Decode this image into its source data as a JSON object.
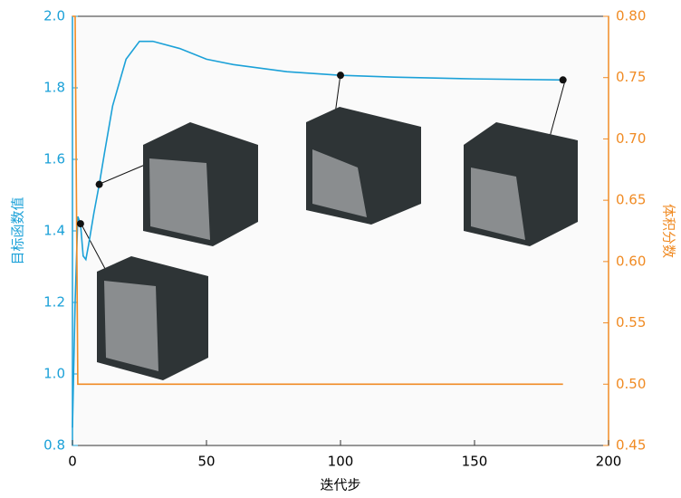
{
  "chart_data": {
    "type": "line",
    "x_label": "迭代步",
    "y_label": "目标函数值",
    "y2_label": "体积分数",
    "xlim": [
      0,
      200
    ],
    "xticks": [
      0,
      50,
      100,
      150,
      200
    ],
    "ylim": [
      0.8,
      2.0
    ],
    "yticks": [
      0.8,
      {
        "value": 1.0,
        "label": "1.0"
      },
      1.2,
      1.4,
      1.6,
      1.8,
      {
        "value": 2.0,
        "label": "2.0"
      }
    ],
    "y2lim": [
      0.45,
      0.8
    ],
    "y2ticks": [
      0.45,
      {
        "value": 0.5,
        "label": "0.50"
      },
      0.55,
      {
        "value": 0.6,
        "label": "0.60"
      },
      0.65,
      {
        "value": 0.7,
        "label": "0.70"
      },
      0.75,
      {
        "value": 0.8,
        "label": "0.80"
      }
    ],
    "y_color": "#1ba1d8",
    "y2_color": "#f08b24",
    "series": [
      {
        "color": "#1ba1d8",
        "x": [
          0,
          1,
          2,
          3,
          4,
          5,
          6,
          8,
          10,
          12,
          15,
          20,
          25,
          30,
          40,
          50,
          60,
          80,
          100,
          120,
          150,
          183
        ],
        "values": [
          0.85,
          1.2,
          1.44,
          1.42,
          1.33,
          1.32,
          1.36,
          1.45,
          1.53,
          1.62,
          1.75,
          1.88,
          1.93,
          1.93,
          1.91,
          1.88,
          1.865,
          1.845,
          1.835,
          1.83,
          1.825,
          1.822
        ]
      },
      {
        "color": "#f08b24",
        "axis": "y2",
        "x": [
          0,
          1,
          2,
          183
        ],
        "values": [
          0.8,
          0.8,
          0.5,
          0.5
        ]
      }
    ],
    "highlighted_points": {
      "x": [
        3,
        10,
        100,
        183
      ],
      "values": [
        1.42,
        1.53,
        1.835,
        1.822
      ]
    }
  }
}
